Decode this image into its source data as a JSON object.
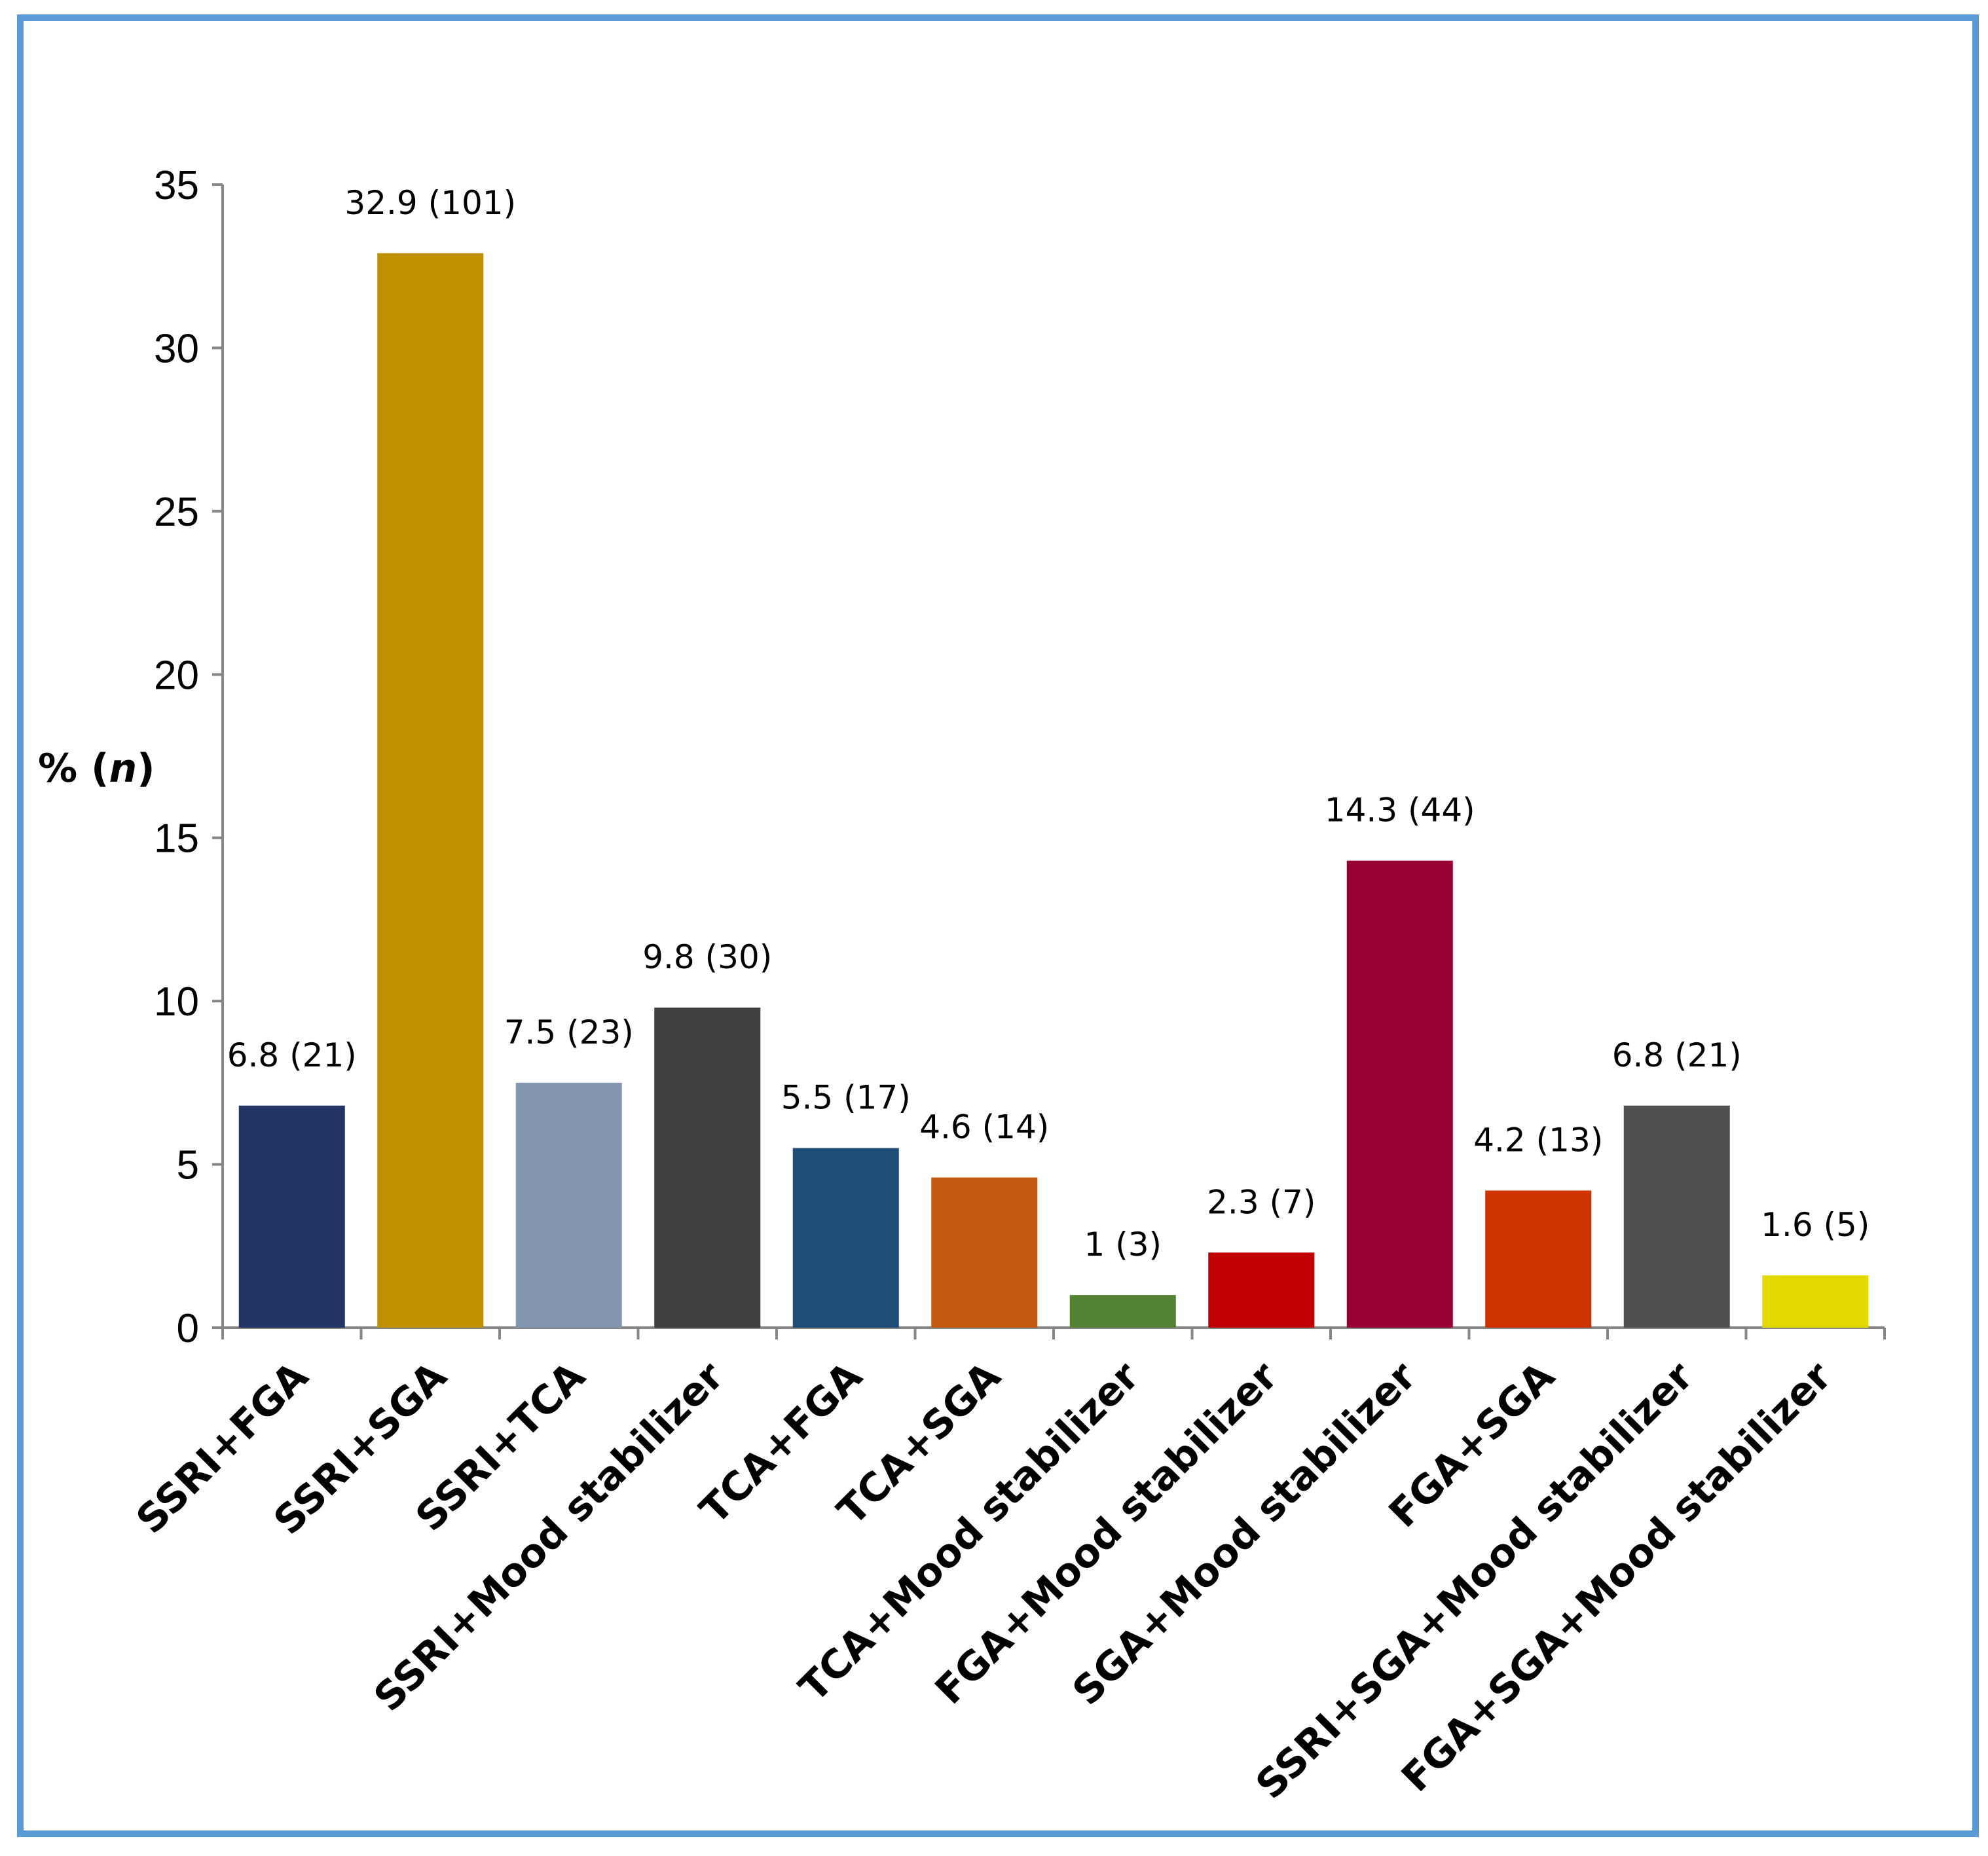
{
  "chart_data": {
    "type": "bar",
    "title": "",
    "xlabel": "",
    "ylabel": "% (n)",
    "ylabel_parts": {
      "prefix": "% (",
      "italic": "n",
      "suffix": ")"
    },
    "ylim": [
      0,
      35
    ],
    "yticks": [
      0,
      5,
      10,
      15,
      20,
      25,
      30,
      35
    ],
    "grid": false,
    "legend": "none",
    "categories": [
      "SSRI+FGA",
      "SSRI+SGA",
      "SSRI+TCA",
      "SSRI+Mood stabilizer",
      "TCA+FGA",
      "TCA+SGA",
      "TCA+Mood stabilizer",
      "FGA+Mood stabilizer",
      "SGA+Mood stabilizer",
      "FGA+SGA",
      "SSRI+SGA+Mood stabilizer",
      "FGA+SGA+Mood stabilizer"
    ],
    "values": [
      6.8,
      32.9,
      7.5,
      9.8,
      5.5,
      4.6,
      1,
      2.3,
      14.3,
      4.2,
      6.8,
      1.6
    ],
    "labels": [
      "6.8 (21)",
      "32.9 (101)",
      "7.5 (23)",
      "9.8 (30)",
      "5.5 (17)",
      "4.6 (14)",
      "1 (3)",
      "2.3 (7)",
      "14.3 (44)",
      "4.2 (13)",
      "6.8 (21)",
      "1.6 (5)"
    ],
    "colors": [
      "#223366",
      "#bf9000",
      "#8497b0",
      "#404040",
      "#1f4e79",
      "#c55a11",
      "#548235",
      "#c00000",
      "#990033",
      "#cc3300",
      "#505050",
      "#e2d900"
    ]
  }
}
